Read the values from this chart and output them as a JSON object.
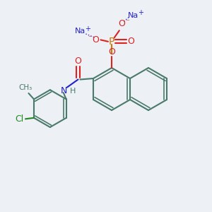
{
  "background_color": "#edf0f4",
  "bond_color": "#4a7a6a",
  "red_color": "#dd2222",
  "blue_color": "#2222cc",
  "orange_color": "#cc7700",
  "green_color": "#228822",
  "figsize": [
    3.0,
    3.0
  ],
  "dpi": 100,
  "xlim": [
    0,
    10
  ],
  "ylim": [
    0,
    10
  ]
}
